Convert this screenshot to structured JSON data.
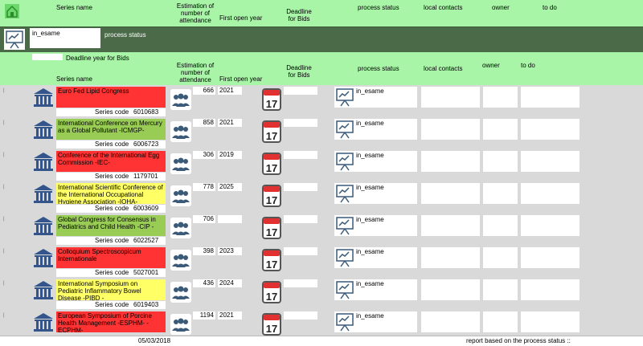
{
  "header": {
    "series_name": "Series name",
    "estimation": "Estimation of number of attendance",
    "first_open_year": "First open year",
    "deadline_for_bids": "Deadline for Bids",
    "process_status": "process status",
    "local_contacts": "local contacts",
    "owner": "owner",
    "to_do": "to do"
  },
  "filter": {
    "input_value": "in_esame",
    "label": "process status"
  },
  "sub_header": {
    "deadline_year_label": "Deadline year for Bids",
    "series_name": "Series name",
    "estimation": "Estimation of number of attendance",
    "first_open_year": "First open year",
    "deadline_for_bids": "Deadline for Bids",
    "process_status": "process status",
    "local_contacts": "local contacts",
    "owner": "owner",
    "to_do": "to do"
  },
  "code_label": "Series code",
  "calendar": {
    "weekday": "Wednesday",
    "day": "17"
  },
  "rows": [
    {
      "name": "Euro Fed Lipid Congress",
      "code": "6010683",
      "attendance": "666",
      "year": "2021",
      "status": "in_esame",
      "color": "#ff3333"
    },
    {
      "name": "International Conference on Mercury as a Global Pollutant -ICMGP-",
      "code": "6006723",
      "attendance": "858",
      "year": "2021",
      "status": "in_esame",
      "color": "#99cc55"
    },
    {
      "name": "Conference of the International Egg Commission -IEC-",
      "code": "1179701",
      "attendance": "306",
      "year": "2019",
      "status": "in_esame",
      "color": "#ff3333"
    },
    {
      "name": "International Scientific Conference of the International Occupational Hygiene Association -IOHA-",
      "code": "6003609",
      "attendance": "778",
      "year": "2025",
      "status": "in_esame",
      "color": "#ffff66"
    },
    {
      "name": "Global Congress for Consensus in Pediatrics  and Child Health -CIP -",
      "code": "6022527",
      "attendance": "706",
      "year": "",
      "status": "in_esame",
      "color": "#99cc55"
    },
    {
      "name": "Colloquium Spectroscopicum Internationale",
      "code": "5027001",
      "attendance": "398",
      "year": "2023",
      "status": "in_esame",
      "color": "#ff3333"
    },
    {
      "name": "International Symposium on Pediatric Inflammatory Bowel Disease -PIBD -",
      "code": "6019403",
      "attendance": "436",
      "year": "2024",
      "status": "in_esame",
      "color": "#ffff66"
    },
    {
      "name": "European Symposium of Porcine Health Management -ESPHM- -ECPHM-",
      "code": "",
      "attendance": "1194",
      "year": "2021",
      "status": "in_esame",
      "color": "#ff3333"
    }
  ],
  "footer": {
    "date": "05/03/2018",
    "report_text": "report based on the process status  ::"
  },
  "colors": {
    "header_bg": "#a8f5a8",
    "filter_bg": "#4a6a48",
    "rows_bg": "#d9d9d9"
  }
}
